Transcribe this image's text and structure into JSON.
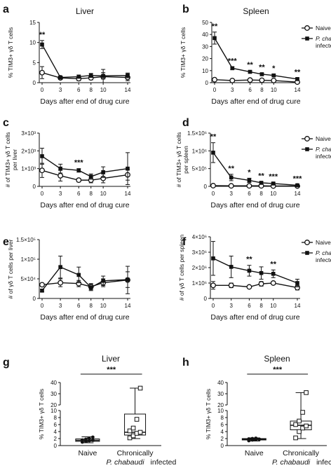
{
  "panels": [
    {
      "id": "a",
      "title": "Liver",
      "xlabel": "Days after end of drug cure",
      "ylabel": [
        "% TIM3+ γδ T cells"
      ]
    },
    {
      "id": "b",
      "title": "Spleen",
      "xlabel": "Days after end of drug cure",
      "ylabel": [
        "% TIM3+ γδ T cells"
      ]
    },
    {
      "id": "c",
      "title": "",
      "xlabel": "Days after end of drug cure",
      "ylabel": [
        "# of TIM3+ γδ T cells",
        "per liver"
      ]
    },
    {
      "id": "d",
      "title": "",
      "xlabel": "Days after end of drug cure",
      "ylabel": [
        "# of TIM3+ γδ T cells",
        "per spleen"
      ]
    },
    {
      "id": "e",
      "title": "",
      "xlabel": "Days after end of drug cure",
      "ylabel": [
        "# of γδ T cells per liver"
      ]
    },
    {
      "id": "f",
      "title": "",
      "xlabel": "Days after end of drug cure",
      "ylabel": [
        "# of γδ T cells per spleen"
      ]
    },
    {
      "id": "g",
      "title": "Liver",
      "xlabel": "",
      "ylabel": [
        "% TIM3+ γδ T cells"
      ]
    },
    {
      "id": "h",
      "title": "Spleen",
      "xlabel": "",
      "ylabel": [
        "% TIM3+ γδ T cells"
      ]
    }
  ],
  "legend": {
    "naive": "Naive",
    "infected_italic": "P. chabaudi",
    "infected_suffix": "infected"
  },
  "box_categories": {
    "naive": "Naive",
    "chronic_line1": "Chronically",
    "chronic_line2_italic": "P. chabaudi",
    "chronic_line2_suffix": "infected"
  },
  "colors": {
    "line": "#111111",
    "marker_open": "#ffffff",
    "marker_filled": "#111111",
    "box_fill": "#ffffff"
  },
  "chart_data": [
    {
      "panel": "a",
      "type": "line",
      "title": "Liver",
      "xlabel": "Days after end of drug cure",
      "ylabel": "% TIM3+ γδ T cells",
      "x": [
        0,
        3,
        6,
        8,
        10,
        14
      ],
      "xlim": [
        0,
        14
      ],
      "ylim": [
        0,
        15
      ],
      "yticks": [
        0,
        5,
        10,
        15
      ],
      "yticklabels": [
        "0",
        "5",
        "10",
        "15"
      ],
      "series": [
        {
          "name": "Naive",
          "marker": "open-circle",
          "values": [
            2.5,
            1.2,
            1.0,
            1.2,
            1.5,
            1.3
          ],
          "err": [
            1.5,
            0.4,
            0.5,
            0.5,
            1.8,
            0.8
          ]
        },
        {
          "name": "P. chabaudi infected",
          "marker": "filled-square",
          "values": [
            9.5,
            1.3,
            1.5,
            1.8,
            1.7,
            1.8
          ],
          "err": [
            1.0,
            0.3,
            0.4,
            0.5,
            0.8,
            0.6
          ]
        }
      ],
      "annotations": [
        {
          "x": 0,
          "text": "**"
        }
      ]
    },
    {
      "panel": "b",
      "type": "line",
      "title": "Spleen",
      "xlabel": "Days after end of drug cure",
      "ylabel": "% TIM3+ γδ T cells",
      "x": [
        0,
        3,
        6,
        8,
        10,
        14
      ],
      "xlim": [
        0,
        14
      ],
      "ylim": [
        0,
        50
      ],
      "yticks": [
        0,
        10,
        20,
        30,
        40,
        50
      ],
      "yticklabels": [
        "0",
        "10",
        "20",
        "30",
        "40",
        "50"
      ],
      "legend": "right",
      "series": [
        {
          "name": "Naive",
          "marker": "open-circle",
          "values": [
            2.5,
            1.8,
            2.2,
            2.0,
            1.8,
            0.5
          ],
          "err": [
            0.5,
            0.4,
            0.5,
            0.4,
            0.4,
            0.3
          ]
        },
        {
          "name": "P. chabaudi infected",
          "marker": "filled-square",
          "values": [
            37,
            12,
            9,
            7,
            6,
            3
          ],
          "err": [
            5,
            1.2,
            1.0,
            0.8,
            1.0,
            0.8
          ]
        }
      ],
      "annotations": [
        {
          "x": 0,
          "text": "**"
        },
        {
          "x": 3,
          "text": "***"
        },
        {
          "x": 6,
          "text": "**"
        },
        {
          "x": 8,
          "text": "**"
        },
        {
          "x": 10,
          "text": "*"
        },
        {
          "x": 14,
          "text": "**"
        }
      ]
    },
    {
      "panel": "c",
      "type": "line",
      "xlabel": "Days after end of drug cure",
      "ylabel": "# of TIM3+ γδ T cells per liver",
      "x": [
        0,
        3,
        6,
        8,
        10,
        14
      ],
      "xlim": [
        0,
        14
      ],
      "ylim": [
        0,
        3000
      ],
      "yticks": [
        0,
        1000,
        2000,
        3000
      ],
      "yticklabels": [
        "0",
        "1×10³",
        "2×10³",
        "3×10³"
      ],
      "series": [
        {
          "name": "Naive",
          "marker": "open-circle",
          "values": [
            900,
            600,
            350,
            350,
            450,
            650
          ],
          "err": [
            400,
            300,
            100,
            150,
            250,
            300
          ]
        },
        {
          "name": "P. chabaudi infected",
          "marker": "filled-square",
          "values": [
            1700,
            1000,
            900,
            550,
            800,
            1000
          ],
          "err": [
            450,
            250,
            100,
            150,
            300,
            900
          ]
        }
      ],
      "annotations": [
        {
          "x": 6,
          "text": "***"
        }
      ]
    },
    {
      "panel": "d",
      "type": "line",
      "xlabel": "Days after end of drug cure",
      "ylabel": "# of TIM3+ γδ T cells per spleen",
      "x": [
        0,
        3,
        6,
        8,
        10,
        14
      ],
      "xlim": [
        0,
        14
      ],
      "ylim": [
        0,
        1500000
      ],
      "yticks": [
        0,
        500000,
        1000000,
        1500000
      ],
      "yticklabels": [
        "0",
        "5×10⁵",
        "1×10⁶",
        "1.5×10⁶"
      ],
      "legend": "right",
      "series": [
        {
          "name": "Naive",
          "marker": "open-circle",
          "values": [
            20000,
            15000,
            15000,
            15000,
            10000,
            10000
          ],
          "err": [
            10000,
            5000,
            5000,
            5000,
            5000,
            5000
          ]
        },
        {
          "name": "P. chabaudi infected",
          "marker": "filled-square",
          "values": [
            950000,
            250000,
            170000,
            100000,
            80000,
            30000
          ],
          "err": [
            280000,
            90000,
            60000,
            30000,
            30000,
            20000
          ]
        }
      ],
      "annotations": [
        {
          "x": 0,
          "text": "**"
        },
        {
          "x": 3,
          "text": "**"
        },
        {
          "x": 6,
          "text": "*"
        },
        {
          "x": 8,
          "text": "**"
        },
        {
          "x": 10,
          "text": "***"
        },
        {
          "x": 14,
          "text": "***"
        }
      ]
    },
    {
      "panel": "e",
      "type": "line",
      "xlabel": "Days after end of drug cure",
      "ylabel": "# of γδ T cells per liver",
      "x": [
        0,
        3,
        6,
        8,
        10,
        14
      ],
      "xlim": [
        0,
        14
      ],
      "ylim": [
        0,
        150000
      ],
      "yticks": [
        0,
        50000,
        100000,
        150000
      ],
      "yticklabels": [
        "0",
        "5×10⁴",
        "1×10⁵",
        "1.5×10⁵"
      ],
      "series": [
        {
          "name": "Naive",
          "marker": "open-circle",
          "values": [
            35000,
            40000,
            38000,
            30000,
            40000,
            47000
          ],
          "err": [
            3000,
            10000,
            8000,
            8000,
            10000,
            35000
          ]
        },
        {
          "name": "P. chabaudi infected",
          "marker": "filled-square",
          "values": [
            20000,
            80000,
            60000,
            28000,
            45000,
            48000
          ],
          "err": [
            3000,
            28000,
            20000,
            8000,
            12000,
            20000
          ]
        }
      ]
    },
    {
      "panel": "f",
      "type": "line",
      "xlabel": "Days after end of drug cure",
      "ylabel": "# of γδ T cells per spleen",
      "x": [
        0,
        3,
        6,
        8,
        10,
        14
      ],
      "xlim": [
        0,
        14
      ],
      "ylim": [
        0,
        4000000
      ],
      "yticks": [
        0,
        1000000,
        2000000,
        3000000,
        4000000
      ],
      "yticklabels": [
        "0",
        "1×10⁶",
        "2×10⁶",
        "3×10⁶",
        "4×10⁶"
      ],
      "legend": "right",
      "series": [
        {
          "name": "Naive",
          "marker": "open-circle",
          "values": [
            850000,
            850000,
            750000,
            950000,
            1000000,
            700000
          ],
          "err": [
            250000,
            150000,
            80000,
            150000,
            100000,
            150000
          ]
        },
        {
          "name": "P. chabaudi infected",
          "marker": "filled-square",
          "values": [
            2600000,
            2050000,
            1800000,
            1650000,
            1600000,
            1000000
          ],
          "err": [
            1100000,
            700000,
            350000,
            400000,
            250000,
            250000
          ]
        }
      ],
      "annotations": [
        {
          "x": 6,
          "text": "**"
        },
        {
          "x": 10,
          "text": "**"
        }
      ]
    },
    {
      "panel": "g",
      "type": "box",
      "title": "Liver",
      "ylabel": "% TIM3+ γδ T cells",
      "categories": [
        "Naive",
        "Chronically P. chabaudi infected"
      ],
      "ylim": [
        0,
        40
      ],
      "ybreak": [
        10,
        20
      ],
      "yticks": [
        0,
        2,
        4,
        6,
        8,
        10,
        20,
        30,
        40
      ],
      "yticklabels": [
        "0",
        "2",
        "4",
        "6",
        "8",
        "10",
        "20",
        "30",
        "40"
      ],
      "boxes": [
        {
          "name": "Naive",
          "min": 0.8,
          "q1": 1.2,
          "median": 1.5,
          "q3": 1.9,
          "max": 2.5,
          "points": [
            1.0,
            1.2,
            1.4,
            1.5,
            1.6,
            1.8,
            2.0,
            2.4
          ]
        },
        {
          "name": "Chronically P. chabaudi infected",
          "min": 2.0,
          "q1": 3.0,
          "median": 3.8,
          "q3": 9.0,
          "max": 35,
          "points": [
            2.2,
            2.8,
            3.5,
            3.8,
            4.2,
            5.0,
            7.5,
            35
          ]
        }
      ],
      "annotations": [
        {
          "text": "***"
        }
      ]
    },
    {
      "panel": "h",
      "type": "box",
      "title": "Spleen",
      "ylabel": "% TIM3+ γδ T cells",
      "categories": [
        "Naive",
        "Chronically P. chabaudi infected"
      ],
      "ylim": [
        0,
        40
      ],
      "ybreak": [
        10,
        20
      ],
      "yticks": [
        0,
        2,
        4,
        6,
        8,
        10,
        20,
        30,
        40
      ],
      "yticklabels": [
        "0",
        "2",
        "4",
        "6",
        "8",
        "10",
        "20",
        "30",
        "40"
      ],
      "boxes": [
        {
          "name": "Naive",
          "min": 1.3,
          "q1": 1.6,
          "median": 1.8,
          "q3": 2.0,
          "max": 2.2,
          "points": [
            1.4,
            1.6,
            1.7,
            1.8,
            1.9,
            2.0,
            2.1
          ]
        },
        {
          "name": "Chronically P. chabaudi infected",
          "min": 2.0,
          "q1": 4.5,
          "median": 5.8,
          "q3": 7.0,
          "max": 31,
          "points": [
            2.2,
            4.0,
            5.0,
            5.6,
            6.0,
            7.0,
            9.5,
            31
          ]
        }
      ],
      "annotations": [
        {
          "text": "***"
        }
      ]
    }
  ]
}
